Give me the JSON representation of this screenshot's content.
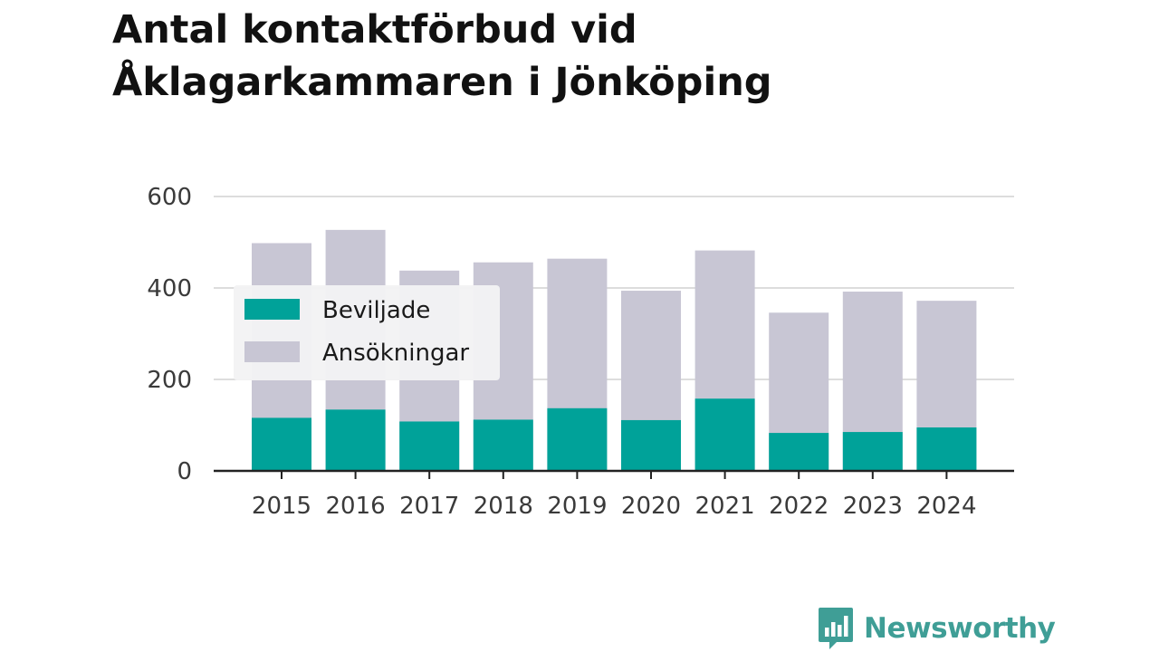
{
  "title_lines": [
    "Antal kontaktförbud vid",
    "Åklagarkammaren i Jönköping"
  ],
  "brand": {
    "name": "Newsworthy",
    "icon": "bar-chart-speech-bubble-icon",
    "color": "#3f9e96"
  },
  "colors": {
    "beviljade": "#00a299",
    "ansokningar": "#c8c6d4",
    "grid": "#dddddd",
    "axis": "#222222"
  },
  "chart_data": {
    "type": "bar",
    "stacking": "overlapping",
    "categories": [
      "2015",
      "2016",
      "2017",
      "2018",
      "2019",
      "2020",
      "2021",
      "2022",
      "2023",
      "2024"
    ],
    "series": [
      {
        "name": "Ansökningar",
        "values": [
          498,
          527,
          438,
          456,
          464,
          394,
          482,
          346,
          392,
          372
        ]
      },
      {
        "name": "Beviljade",
        "values": [
          116,
          134,
          108,
          112,
          137,
          111,
          158,
          83,
          85,
          95
        ]
      }
    ],
    "yticks": [
      "0",
      "200",
      "400",
      "600"
    ],
    "ylim": [
      0,
      600
    ],
    "grid": true,
    "legend": {
      "position": "top-left",
      "entries": [
        "Beviljade",
        "Ansökningar"
      ]
    }
  }
}
